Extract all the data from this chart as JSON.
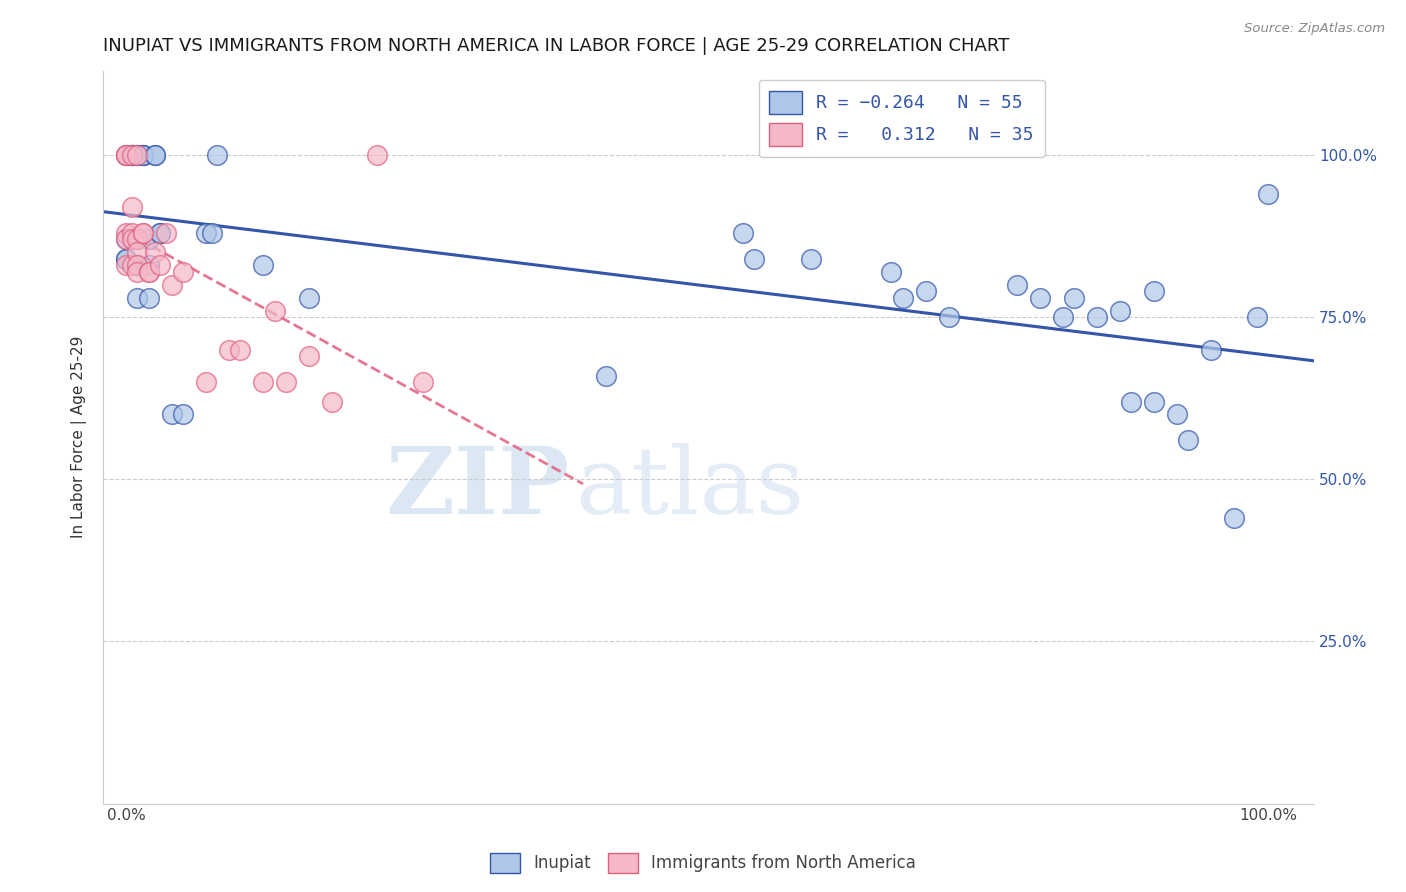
{
  "title": "INUPIAT VS IMMIGRANTS FROM NORTH AMERICA IN LABOR FORCE | AGE 25-29 CORRELATION CHART",
  "source": "Source: ZipAtlas.com",
  "ylabel": "In Labor Force | Age 25-29",
  "inupiat_color": "#aec6e8",
  "immigrant_color": "#f4b8c8",
  "inupiat_line_color": "#3355aa",
  "immigrant_line_color": "#e06080",
  "watermark_zip": "ZIP",
  "watermark_atlas": "atlas",
  "inupiat_x": [
    0.0,
    0.0,
    0.0,
    0.0,
    0.005,
    0.005,
    0.005,
    0.005,
    0.005,
    0.005,
    0.01,
    0.01,
    0.01,
    0.01,
    0.01,
    0.01,
    0.015,
    0.015,
    0.015,
    0.02,
    0.02,
    0.02,
    0.025,
    0.025,
    0.03,
    0.03,
    0.04,
    0.05,
    0.07,
    0.075,
    0.08,
    0.12,
    0.16,
    0.42,
    0.54,
    0.55,
    0.6,
    0.67,
    0.68,
    0.7,
    0.72,
    0.78,
    0.8,
    0.82,
    0.83,
    0.85,
    0.87,
    0.88,
    0.9,
    0.9,
    0.92,
    0.93,
    0.95,
    0.97,
    0.99,
    1.0
  ],
  "inupiat_y": [
    0.87,
    0.84,
    0.84,
    1.0,
    1.0,
    1.0,
    1.0,
    1.0,
    1.0,
    0.87,
    1.0,
    1.0,
    1.0,
    0.87,
    0.83,
    0.78,
    1.0,
    1.0,
    1.0,
    0.87,
    0.83,
    0.78,
    1.0,
    1.0,
    0.88,
    0.88,
    0.6,
    0.6,
    0.88,
    0.88,
    1.0,
    0.83,
    0.78,
    0.66,
    0.88,
    0.84,
    0.84,
    0.82,
    0.78,
    0.79,
    0.75,
    0.8,
    0.78,
    0.75,
    0.78,
    0.75,
    0.76,
    0.62,
    0.62,
    0.79,
    0.6,
    0.56,
    0.7,
    0.44,
    0.75,
    0.94
  ],
  "immigrant_x": [
    0.0,
    0.0,
    0.0,
    0.0,
    0.0,
    0.0,
    0.005,
    0.005,
    0.005,
    0.005,
    0.005,
    0.01,
    0.01,
    0.01,
    0.01,
    0.01,
    0.015,
    0.015,
    0.02,
    0.02,
    0.025,
    0.03,
    0.035,
    0.04,
    0.05,
    0.07,
    0.09,
    0.1,
    0.12,
    0.13,
    0.14,
    0.16,
    0.18,
    0.22,
    0.26
  ],
  "immigrant_y": [
    1.0,
    1.0,
    1.0,
    0.88,
    0.87,
    0.83,
    1.0,
    0.92,
    0.88,
    0.87,
    0.83,
    1.0,
    0.87,
    0.85,
    0.83,
    0.82,
    0.88,
    0.88,
    0.82,
    0.82,
    0.85,
    0.83,
    0.88,
    0.8,
    0.82,
    0.65,
    0.7,
    0.7,
    0.65,
    0.76,
    0.65,
    0.69,
    0.62,
    1.0,
    0.65
  ],
  "xlim": [
    -0.02,
    1.04
  ],
  "ylim": [
    0.0,
    1.13
  ],
  "yticks": [
    0.0,
    0.25,
    0.5,
    0.75,
    1.0
  ],
  "xticks": [
    0.0,
    0.1,
    0.2,
    0.3,
    0.4,
    0.5,
    0.6,
    0.7,
    0.8,
    0.9,
    1.0
  ],
  "right_ytick_labels": [
    "100.0%",
    "75.0%",
    "50.0%",
    "25.0%"
  ],
  "right_ytick_vals": [
    1.0,
    0.75,
    0.5,
    0.25
  ],
  "grid_color": "#cccccc",
  "title_fontsize": 13,
  "scatter_size": 200,
  "scatter_alpha": 0.7,
  "scatter_linewidth": 1.1
}
